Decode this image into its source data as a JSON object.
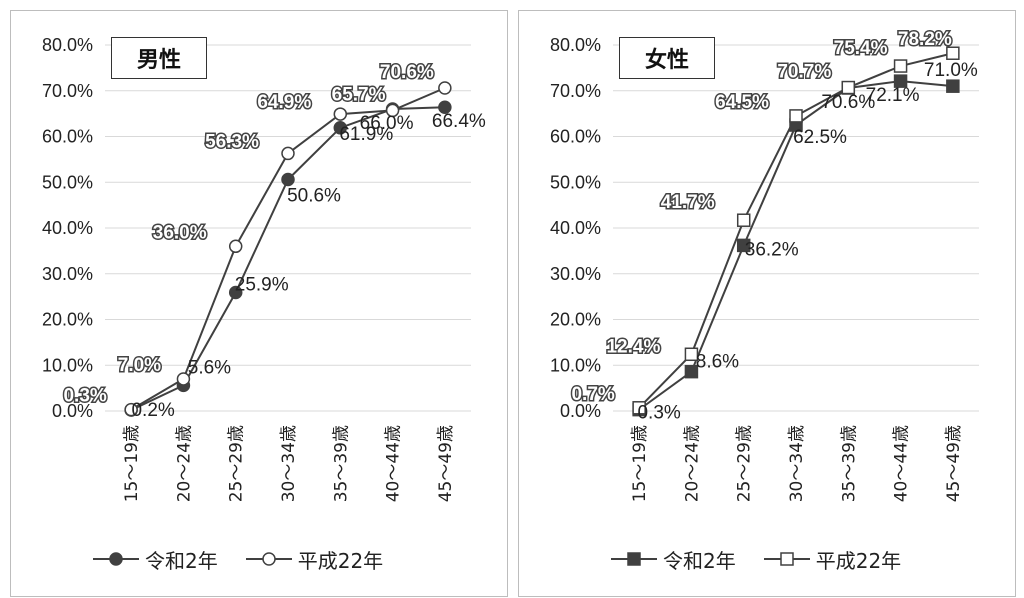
{
  "chart_data": [
    {
      "type": "line",
      "title": "男性",
      "categories": [
        "15～19歳",
        "20～24歳",
        "25～29歳",
        "30～34歳",
        "35～39歳",
        "40～44歳",
        "45～49歳"
      ],
      "ylim": [
        0,
        80
      ],
      "y_ticks": [
        "0.0%",
        "10.0%",
        "20.0%",
        "30.0%",
        "40.0%",
        "50.0%",
        "60.0%",
        "70.0%",
        "80.0%"
      ],
      "grid": true,
      "legend_position": "bottom",
      "series": [
        {
          "name": "令和2年",
          "marker": "filled-circle",
          "values": [
            0.2,
            5.6,
            25.9,
            50.6,
            61.9,
            66.0,
            66.4
          ],
          "labels": [
            "0.2%",
            "5.6%",
            "25.9%",
            "50.6%",
            "61.9%",
            "66.0%",
            "66.4%"
          ]
        },
        {
          "name": "平成22年",
          "marker": "open-circle",
          "values": [
            0.3,
            7.0,
            36.0,
            56.3,
            64.9,
            65.7,
            70.6
          ],
          "labels": [
            "0.3%",
            "7.0%",
            "36.0%",
            "56.3%",
            "64.9%",
            "65.7%",
            "70.6%"
          ]
        }
      ]
    },
    {
      "type": "line",
      "title": "女性",
      "categories": [
        "15～19歳",
        "20～24歳",
        "25～29歳",
        "30～34歳",
        "35～39歳",
        "40～44歳",
        "45～49歳"
      ],
      "ylim": [
        0,
        80
      ],
      "y_ticks": [
        "0.0%",
        "10.0%",
        "20.0%",
        "30.0%",
        "40.0%",
        "50.0%",
        "60.0%",
        "70.0%",
        "80.0%"
      ],
      "grid": true,
      "legend_position": "bottom",
      "series": [
        {
          "name": "令和2年",
          "marker": "filled-square",
          "values": [
            0.3,
            8.6,
            36.2,
            62.5,
            70.6,
            72.1,
            71.0
          ],
          "labels": [
            "0.3%",
            "8.6%",
            "36.2%",
            "62.5%",
            "70.6%",
            "72.1%",
            "71.0%"
          ]
        },
        {
          "name": "平成22年",
          "marker": "open-square",
          "values": [
            0.7,
            12.4,
            41.7,
            64.5,
            70.7,
            75.4,
            78.2
          ],
          "labels": [
            "0.7%",
            "12.4%",
            "41.7%",
            "64.5%",
            "70.7%",
            "75.4%",
            "78.2%"
          ]
        }
      ]
    }
  ],
  "colors": {
    "line": "#404040",
    "grid": "#d9d9d9",
    "text": "#222222"
  }
}
